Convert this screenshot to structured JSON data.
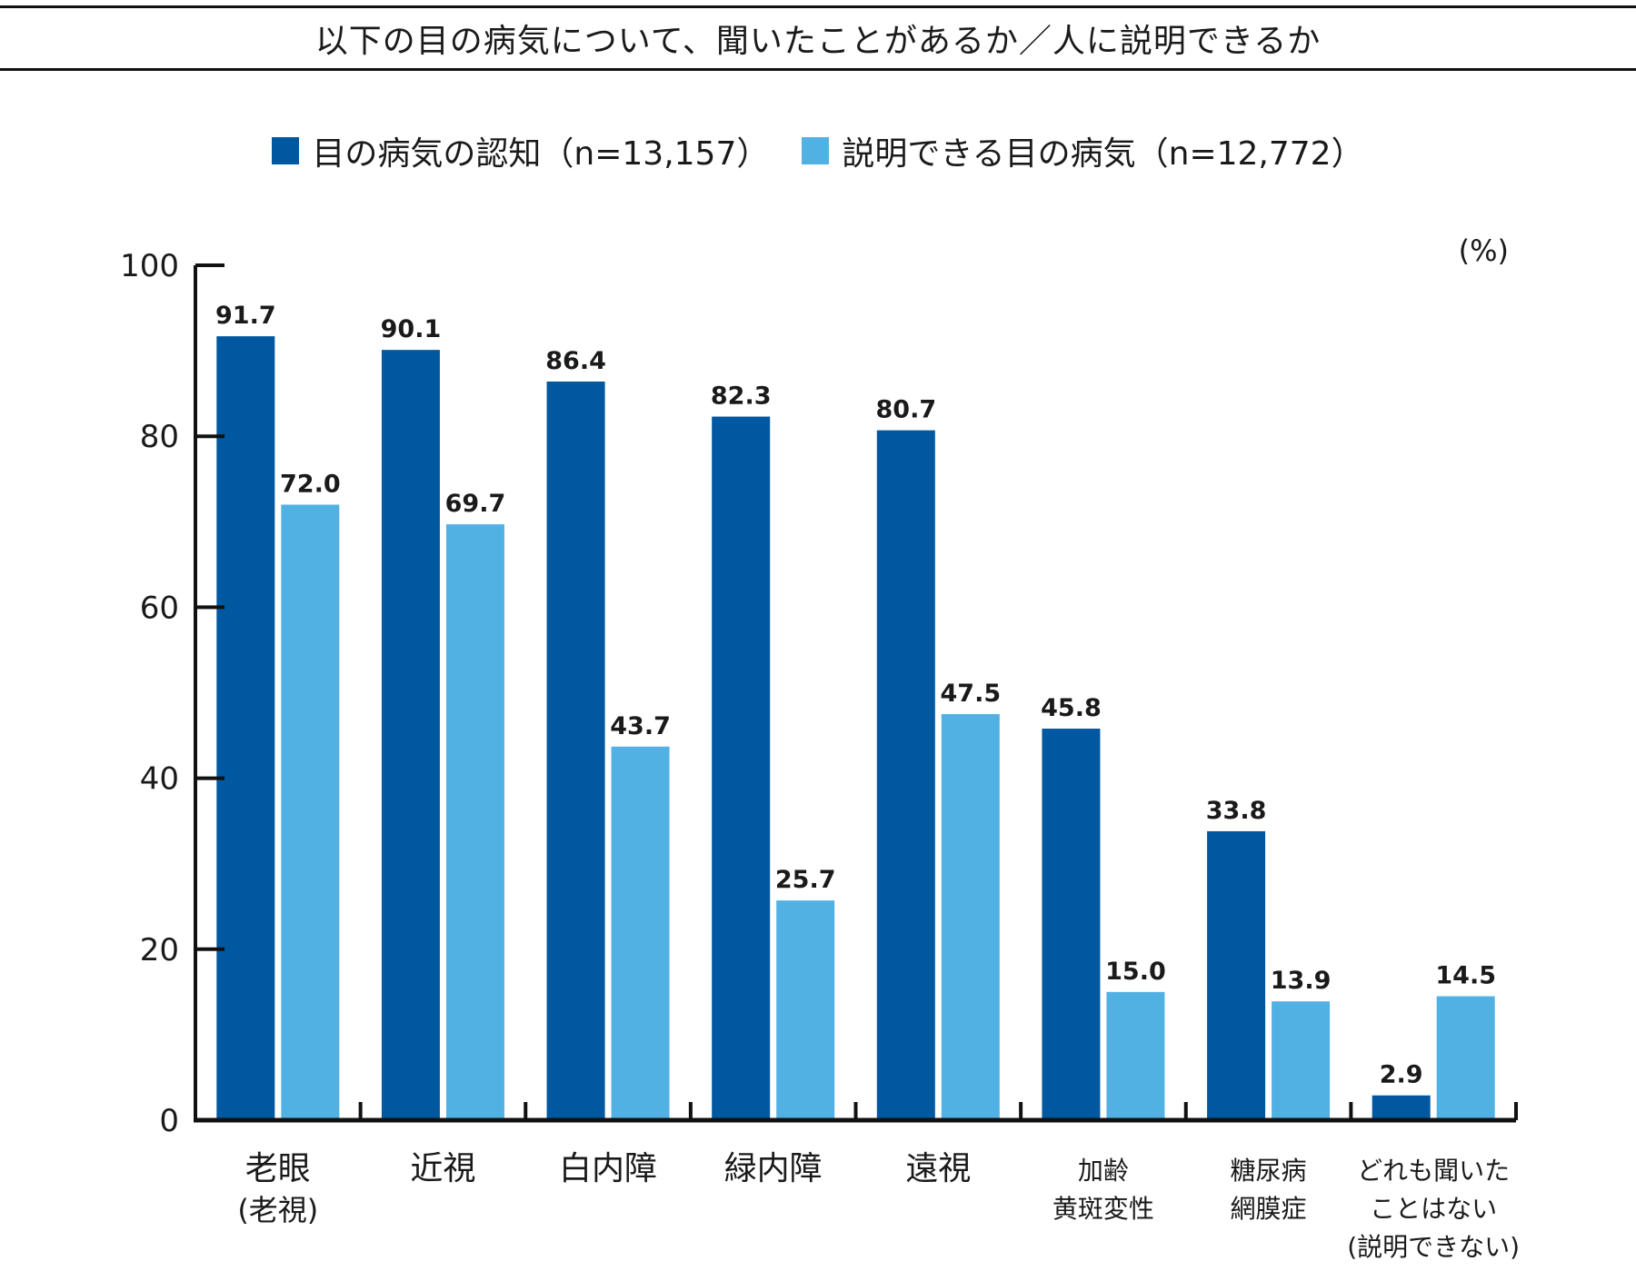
{
  "chart_data": {
    "type": "bar",
    "title": "以下の目の病気について、聞いたことがあるか／人に説明できるか",
    "unit": "(%)",
    "ylim": [
      0,
      100
    ],
    "yticks": [
      "0",
      "20",
      "40",
      "60",
      "80",
      "100"
    ],
    "legend_position": "top-center",
    "grid": false,
    "categories": [
      [
        "老眼",
        "(老視)"
      ],
      [
        "近視"
      ],
      [
        "白内障"
      ],
      [
        "緑内障"
      ],
      [
        "遠視"
      ],
      [
        "加齢",
        "黄斑変性"
      ],
      [
        "糖尿病",
        "網膜症"
      ],
      [
        "どれも聞いた",
        "ことはない",
        "(説明できない)"
      ]
    ],
    "series": [
      {
        "name": "目の病気の認知（n=13,157）",
        "color": "#0058a0",
        "values": [
          91.7,
          90.1,
          86.4,
          82.3,
          80.7,
          45.8,
          33.8,
          2.9
        ],
        "labels": [
          "91.7",
          "90.1",
          "86.4",
          "82.3",
          "80.7",
          "45.8",
          "33.8",
          "2.9"
        ]
      },
      {
        "name": "説明できる目の病気（n=12,772）",
        "color": "#52b1e3",
        "values": [
          72.0,
          69.7,
          43.7,
          25.7,
          47.5,
          15.0,
          13.9,
          14.5
        ],
        "labels": [
          "72.0",
          "69.7",
          "43.7",
          "25.7",
          "47.5",
          "15.0",
          "13.9",
          "14.5"
        ]
      }
    ]
  }
}
